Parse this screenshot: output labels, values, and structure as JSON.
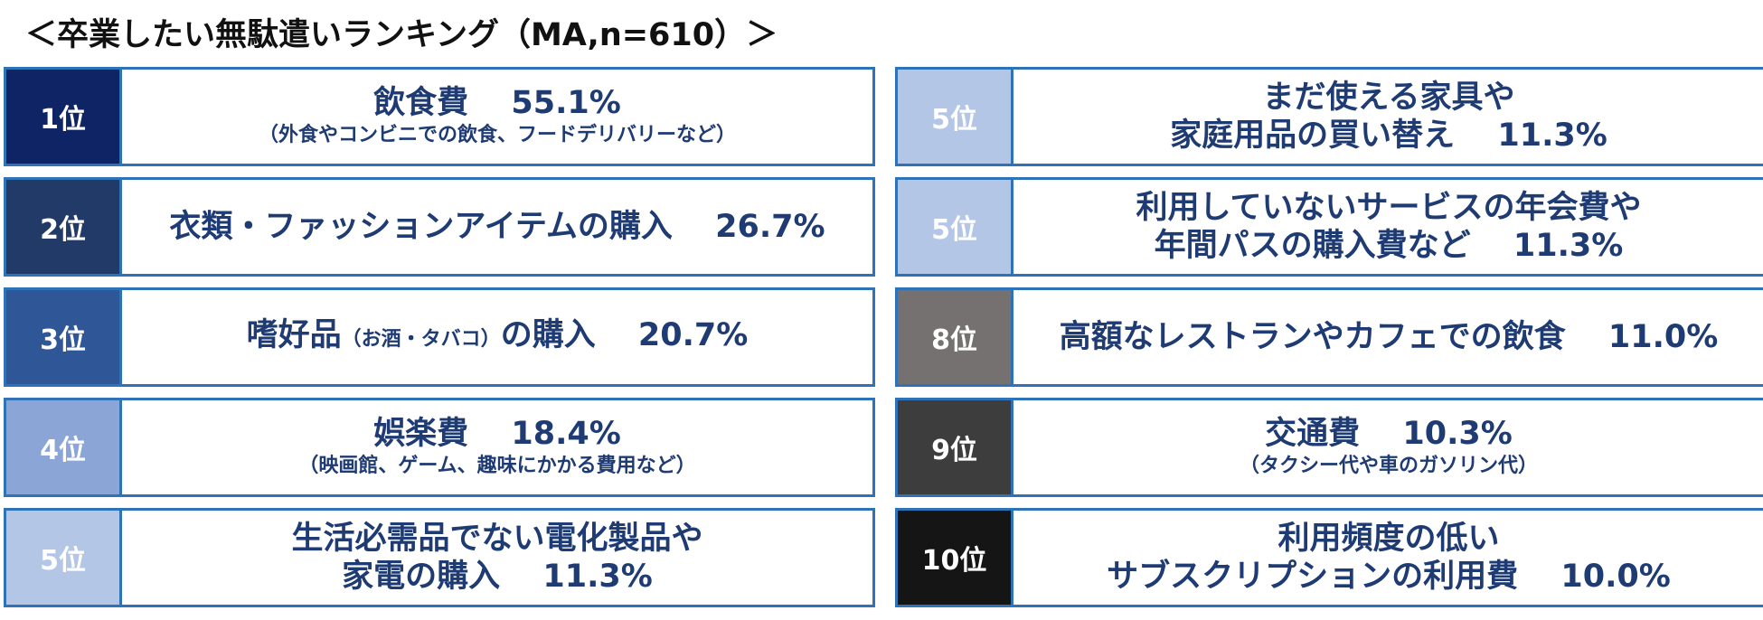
{
  "title": "＜卒業したい無駄遣いランキング（MA,n=610）＞",
  "colors": {
    "border": "#2e72b8",
    "text": "#1f3b73",
    "rank1": "#0e2464",
    "rank2": "#223a68",
    "rank3": "#2f5797",
    "rank4": "#8aa5d6",
    "rank5": "#b3c6e6",
    "rank8": "#757170",
    "rank9": "#3d3d3d",
    "rank10": "#151515"
  },
  "chart_data": {
    "type": "table",
    "title": "＜卒業したい無駄遣いランキング（MA,n=610）＞",
    "rows": [
      {
        "rank": "1位",
        "item": "飲食費",
        "note": "（外食やコンビニでの飲食、フードデリバリーなど）",
        "value": 55.1,
        "value_label": "55.1%"
      },
      {
        "rank": "2位",
        "item": "衣類・ファッションアイテムの購入",
        "note": "",
        "value": 26.7,
        "value_label": "26.7%"
      },
      {
        "rank": "3位",
        "item": "嗜好品（お酒・タバコ）の購入",
        "item_main1": "嗜好品",
        "item_paren": "（お酒・タバコ）",
        "item_main2": "の購入",
        "note": "",
        "value": 20.7,
        "value_label": "20.7%"
      },
      {
        "rank": "4位",
        "item": "娯楽費",
        "note": "（映画館、ゲーム、趣味にかかる費用など）",
        "value": 18.4,
        "value_label": "18.4%"
      },
      {
        "rank": "5位",
        "item": "生活必需品でない電化製品や家電の購入",
        "line1": "生活必需品でない電化製品や",
        "line2": "家電の購入",
        "note": "",
        "value": 11.3,
        "value_label": "11.3%"
      },
      {
        "rank": "5位",
        "item": "まだ使える家具や家庭用品の買い替え",
        "line1": "まだ使える家具や",
        "line2": "家庭用品の買い替え",
        "note": "",
        "value": 11.3,
        "value_label": "11.3%"
      },
      {
        "rank": "5位",
        "item": "利用していないサービスの年会費や年間パスの購入費など",
        "line1": "利用していないサービスの年会費や",
        "line2": "年間パスの購入費など",
        "note": "",
        "value": 11.3,
        "value_label": "11.3%"
      },
      {
        "rank": "8位",
        "item": "高額なレストランやカフェでの飲食",
        "note": "",
        "value": 11.0,
        "value_label": "11.0%"
      },
      {
        "rank": "9位",
        "item": "交通費",
        "note": "（タクシー代や車のガソリン代）",
        "value": 10.3,
        "value_label": "10.3%"
      },
      {
        "rank": "10位",
        "item": "利用頻度の低いサブスクリプションの利用費",
        "line1": "利用頻度の低い",
        "line2": "サブスクリプションの利用費",
        "note": "",
        "value": 10.0,
        "value_label": "10.0%"
      }
    ]
  }
}
